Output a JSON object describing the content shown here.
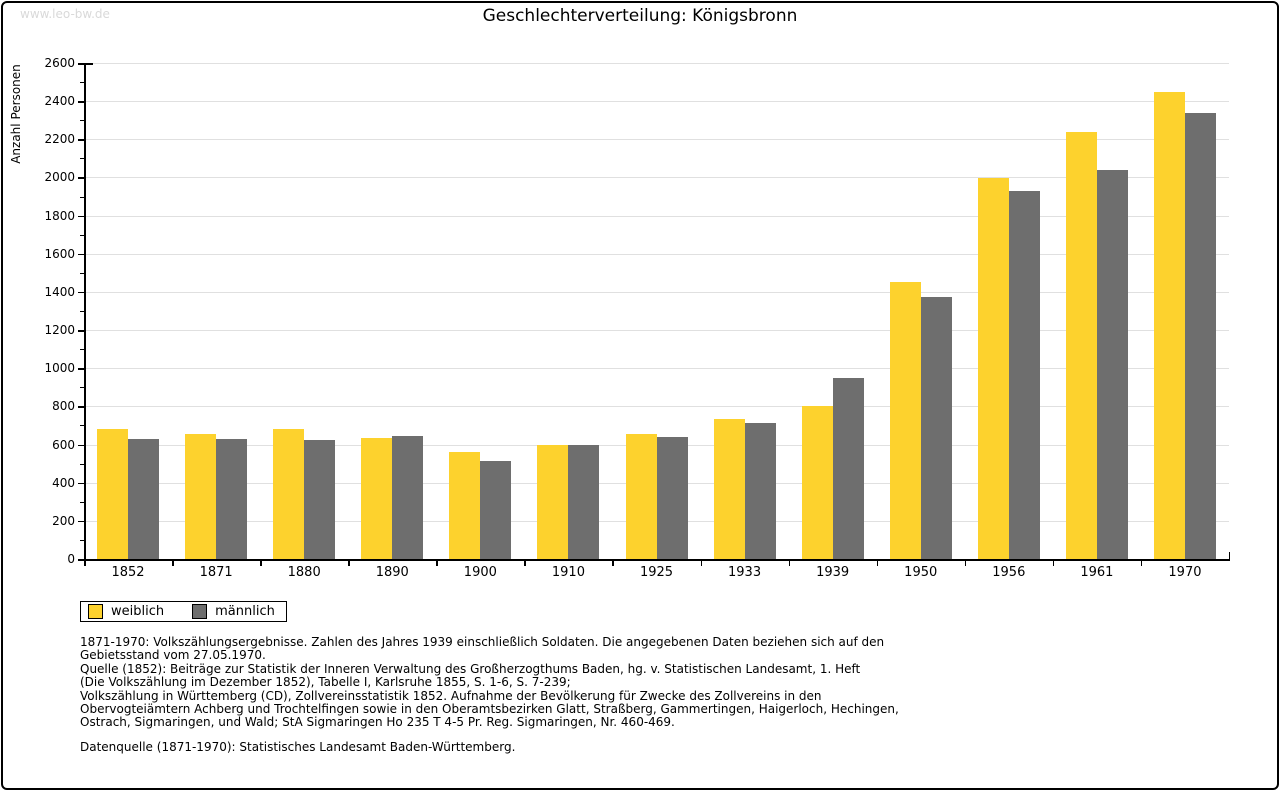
{
  "watermark": "www.leo-bw.de",
  "title": "Geschlechterverteilung: Königsbronn",
  "y_axis_title": "Anzahl Personen",
  "colors": {
    "weiblich": "#fdd22d",
    "maennlich": "#6e6e6e",
    "gridline": "#e0e0e0",
    "axis": "#000000",
    "watermark": "#d9d9d9",
    "background": "#ffffff"
  },
  "legend": {
    "items": [
      {
        "label": "weiblich",
        "color": "#fdd22d"
      },
      {
        "label": "männlich",
        "color": "#6e6e6e"
      }
    ]
  },
  "chart_data": {
    "type": "bar",
    "title": "Geschlechterverteilung: Königsbronn",
    "xlabel": "",
    "ylabel": "Anzahl Personen",
    "categories": [
      "1852",
      "1871",
      "1880",
      "1890",
      "1900",
      "1910",
      "1925",
      "1933",
      "1939",
      "1950",
      "1956",
      "1961",
      "1970"
    ],
    "series": [
      {
        "name": "weiblich",
        "color": "#fdd22d",
        "values": [
          680,
          655,
          680,
          635,
          560,
          600,
          655,
          735,
          800,
          1450,
          1995,
          2240,
          2450
        ]
      },
      {
        "name": "männlich",
        "color": "#6e6e6e",
        "values": [
          630,
          630,
          625,
          645,
          515,
          595,
          640,
          715,
          950,
          1375,
          1930,
          2040,
          2340
        ]
      }
    ],
    "ylim": [
      0,
      2600
    ],
    "y_major_step": 200,
    "y_minor_step": 100,
    "grid": true,
    "legend_position": "bottom-left"
  },
  "notes": [
    "1871-1970: Volkszählungsergebnisse. Zahlen des Jahres 1939 einschließlich Soldaten. Die angegebenen Daten beziehen sich auf den",
    "Gebietsstand vom 27.05.1970.",
    "Quelle (1852): Beiträge zur Statistik der Inneren Verwaltung des Großherzogthums Baden, hg. v. Statistischen Landesamt, 1. Heft",
    "(Die Volkszählung im Dezember 1852), Tabelle I, Karlsruhe 1855, S. 1-6, S. 7-239;",
    "Volkszählung in Württemberg (CD), Zollvereinsstatistik 1852. Aufnahme der Bevölkerung für Zwecke des Zollvereins in den",
    "Obervogteiämtern Achberg und Trochtelfingen sowie in den Oberamtsbezirken Glatt, Straßberg, Gammertingen, Haigerloch, Hechingen,",
    "Ostrach, Sigmaringen, und Wald; StA Sigmaringen Ho 235 T 4-5 Pr. Reg. Sigmaringen, Nr. 460-469."
  ],
  "source_line": "Datenquelle (1871-1970): Statistisches Landesamt Baden-Württemberg."
}
